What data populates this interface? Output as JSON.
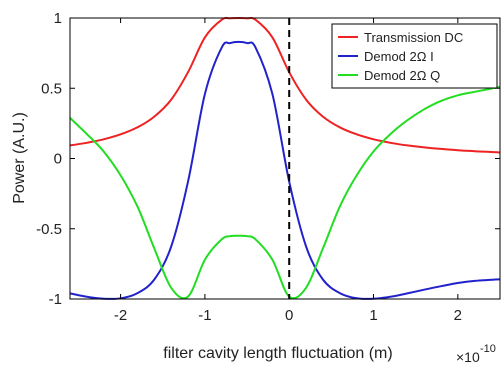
{
  "chart_data": {
    "type": "line",
    "xlabel": "filter cavity length fluctuation (m)",
    "ylabel": "Power (A.U.)",
    "x_exponent_label": "×10",
    "x_exponent_value": "-10",
    "xlim": [
      -2.6,
      2.5
    ],
    "ylim": [
      -1,
      1
    ],
    "xticks": [
      -2,
      -1,
      0,
      1,
      2
    ],
    "xtick_labels": [
      "-2",
      "-1",
      "0",
      "1",
      "2"
    ],
    "yticks": [
      -1,
      -0.5,
      0,
      0.5,
      1
    ],
    "ytick_labels": [
      "-1",
      "-0.5",
      "0",
      "0.5",
      "1"
    ],
    "grid": false,
    "legend_position": "top-right",
    "reference_line": {
      "x": 0,
      "style": "dashed",
      "color": "#000000"
    },
    "series": [
      {
        "name": "Transmission DC",
        "color": "#ee2222",
        "x": [
          -2.6,
          -2.4,
          -2.2,
          -2.0,
          -1.8,
          -1.6,
          -1.4,
          -1.2,
          -1.0,
          -0.8,
          -0.7,
          -0.6,
          -0.5,
          -0.4,
          -0.2,
          0.0,
          0.2,
          0.4,
          0.6,
          0.8,
          1.0,
          1.2,
          1.4,
          1.6,
          1.8,
          2.0,
          2.2,
          2.5
        ],
        "y": [
          0.093,
          0.112,
          0.137,
          0.172,
          0.222,
          0.298,
          0.419,
          0.614,
          0.862,
          0.988,
          0.998,
          1.0,
          0.998,
          0.988,
          0.862,
          0.614,
          0.419,
          0.298,
          0.222,
          0.172,
          0.137,
          0.112,
          0.093,
          0.079,
          0.068,
          0.059,
          0.052,
          0.043
        ]
      },
      {
        "name": "Demod 2Ω I",
        "color": "#2222cc",
        "x": [
          -2.6,
          -2.4,
          -2.2,
          -2.0,
          -1.8,
          -1.6,
          -1.4,
          -1.2,
          -1.0,
          -0.8,
          -0.7,
          -0.6,
          -0.5,
          -0.4,
          -0.2,
          0.0,
          0.2,
          0.4,
          0.6,
          0.8,
          1.0,
          1.2,
          1.4,
          1.6,
          1.8,
          2.0,
          2.2,
          2.5
        ],
        "y": [
          -0.96,
          -0.984,
          -0.998,
          -0.995,
          -0.958,
          -0.861,
          -0.626,
          -0.165,
          0.459,
          0.791,
          0.821,
          0.83,
          0.821,
          0.791,
          0.459,
          -0.165,
          -0.626,
          -0.861,
          -0.958,
          -0.995,
          -0.998,
          -0.984,
          -0.96,
          -0.934,
          -0.909,
          -0.886,
          -0.871,
          -0.86
        ]
      },
      {
        "name": "Demod 2Ω Q",
        "color": "#22dd22",
        "x": [
          -2.6,
          -2.4,
          -2.2,
          -2.0,
          -1.8,
          -1.6,
          -1.4,
          -1.2,
          -1.0,
          -0.8,
          -0.7,
          -0.6,
          -0.5,
          -0.4,
          -0.2,
          0.0,
          0.2,
          0.4,
          0.6,
          0.8,
          1.0,
          1.2,
          1.4,
          1.6,
          1.8,
          2.0,
          2.2,
          2.5
        ],
        "y": [
          0.289,
          0.174,
          0.05,
          -0.12,
          -0.342,
          -0.64,
          -0.92,
          -0.983,
          -0.72,
          -0.575,
          -0.553,
          -0.55,
          -0.553,
          -0.575,
          -0.72,
          -0.983,
          -0.92,
          -0.64,
          -0.342,
          -0.12,
          0.05,
          0.174,
          0.272,
          0.35,
          0.41,
          0.45,
          0.475,
          0.51
        ]
      }
    ]
  }
}
